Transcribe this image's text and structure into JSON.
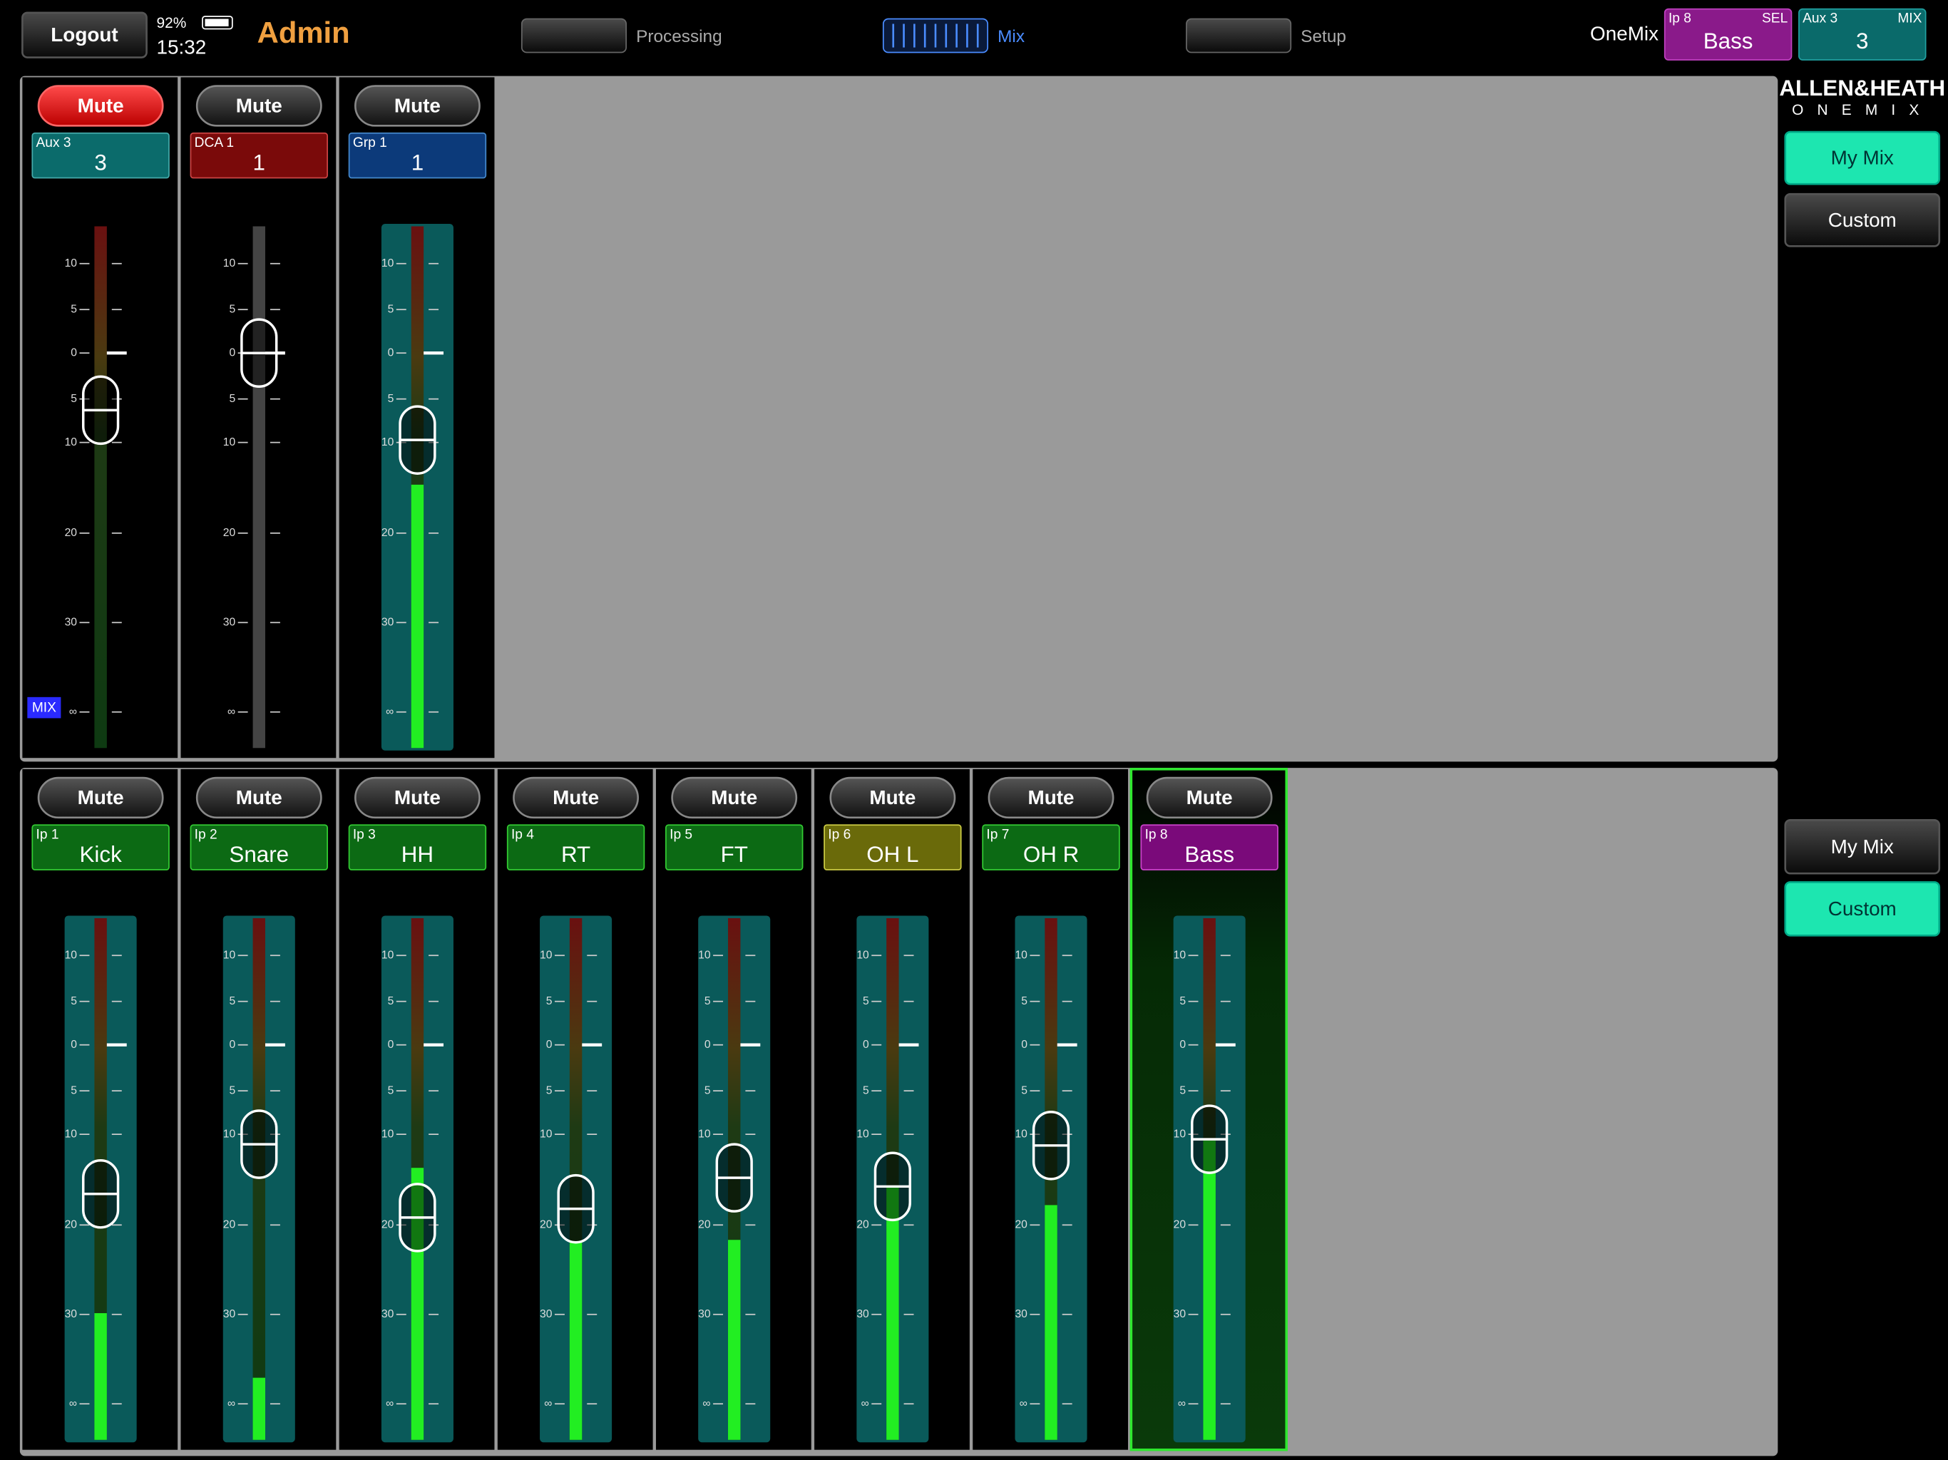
{
  "header": {
    "logout": "Logout",
    "battery": "92%",
    "time": "15:32",
    "user": "Admin",
    "tabs": [
      "Processing",
      "Mix",
      "Setup"
    ],
    "mode": "OneMix",
    "selected": {
      "tag": "Ip 8",
      "badge": "SEL",
      "name": "Bass"
    },
    "mix": {
      "tag": "Aux 3",
      "badge": "MIX",
      "name": "3"
    }
  },
  "brand": {
    "name": "ALLEN&HEATH",
    "product": "ONEMIX"
  },
  "scale": [
    "10",
    "5",
    "0",
    "5",
    "10",
    "20",
    "30",
    "∞"
  ],
  "mix_badge": "MIX",
  "top_strips": [
    {
      "mute": "Mute",
      "muted": true,
      "tag": "Aux 3",
      "name": "3",
      "color": "#0b6b6b"
    },
    {
      "mute": "Mute",
      "muted": false,
      "tag": "DCA 1",
      "name": "1",
      "color": "#7a0a0a"
    },
    {
      "mute": "Mute",
      "muted": false,
      "tag": "Grp 1",
      "name": "1",
      "color": "#0c3a7a"
    }
  ],
  "bottom_strips": [
    {
      "mute": "Mute",
      "muted": false,
      "tag": "Ip 1",
      "name": "Kick",
      "color": "#0c6a14"
    },
    {
      "mute": "Mute",
      "muted": false,
      "tag": "Ip 2",
      "name": "Snare",
      "color": "#0c6a14"
    },
    {
      "mute": "Mute",
      "muted": false,
      "tag": "Ip 3",
      "name": "HH",
      "color": "#0c6a14"
    },
    {
      "mute": "Mute",
      "muted": false,
      "tag": "Ip 4",
      "name": "RT",
      "color": "#0c6a14"
    },
    {
      "mute": "Mute",
      "muted": false,
      "tag": "Ip 5",
      "name": "FT",
      "color": "#0c6a14"
    },
    {
      "mute": "Mute",
      "muted": false,
      "tag": "Ip 6",
      "name": "OH L",
      "color": "#6a6a0a"
    },
    {
      "mute": "Mute",
      "muted": false,
      "tag": "Ip 7",
      "name": "OH R",
      "color": "#0c6a14"
    },
    {
      "mute": "Mute",
      "muted": false,
      "tag": "Ip 8",
      "name": "Bass",
      "color": "#7a0a7a"
    }
  ],
  "side_top": [
    "My Mix",
    "Custom"
  ],
  "side_bottom": [
    "My Mix",
    "Custom"
  ]
}
